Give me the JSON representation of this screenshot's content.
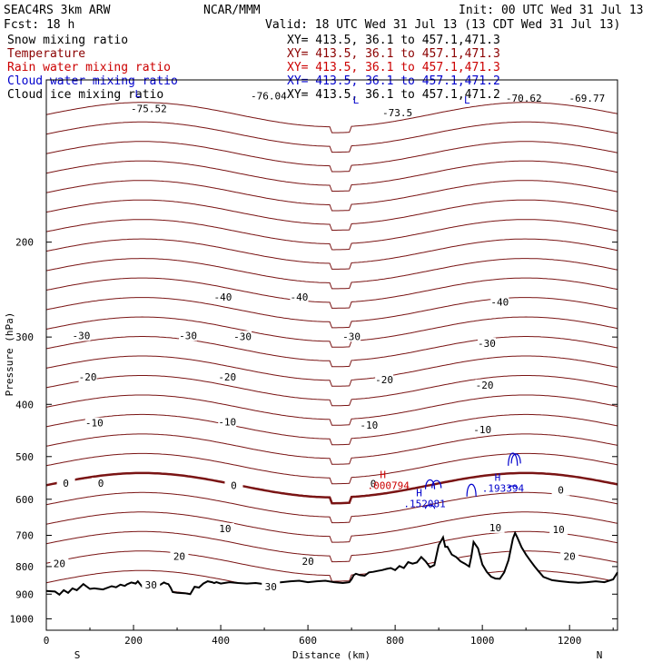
{
  "header": {
    "model": "SEAC4RS  3km ARW",
    "org": "NCAR/MMM",
    "init": "Init: 00 UTC Wed 31 Jul 13",
    "fcst": "Fcst:   18 h",
    "valid": "Valid: 18 UTC Wed 31 Jul 13 (13 CDT Wed 31 Jul 13)"
  },
  "fields": [
    {
      "name": "Snow mixing ratio",
      "xy": "XY= 413.5, 36.1 to 457.1,471.3",
      "color": "#000000"
    },
    {
      "name": "Temperature",
      "xy": "XY= 413.5, 36.1 to 457.1,471.3",
      "color": "#8b0000"
    },
    {
      "name": "Rain water mixing ratio",
      "xy": "XY= 413.5, 36.1 to 457.1,471.3",
      "color": "#cc0000"
    },
    {
      "name": "Cloud water mixing ratio",
      "xy": "XY= 413.5, 36.1 to 457.1,471.2",
      "color": "#0000cc"
    },
    {
      "name": "Cloud ice mixing ratio",
      "xy": "XY= 413.5, 36.1 to 457.1,471.2",
      "color": "#000000"
    }
  ],
  "colors": {
    "temperature": "#7a1414",
    "rain": "#cc0000",
    "cloud_water": "#0000cc",
    "terrain": "#000000"
  },
  "chart_data": {
    "type": "line",
    "xlabel": "Distance (km)",
    "ylabel": "Pressure (hPa)",
    "xlim": [
      0,
      1310
    ],
    "ylim": [
      1050,
      100
    ],
    "y_scale": "log",
    "x_ticks": [
      "0",
      "200",
      "400",
      "600",
      "800",
      "1000",
      "1200"
    ],
    "y_ticks": [
      "200",
      "300",
      "400",
      "500",
      "600",
      "700",
      "800",
      "900",
      "1000"
    ],
    "x_ends": {
      "left": "S",
      "right": "N"
    },
    "isotherm_levels": [
      -70,
      -60,
      -50,
      -40,
      -30,
      -20,
      -10,
      0,
      10,
      20,
      30
    ],
    "isotherm_labels": [
      {
        "text": "-40",
        "x": 405,
        "p": 253
      },
      {
        "text": "-40",
        "x": 580,
        "p": 253
      },
      {
        "text": "-40",
        "x": 1040,
        "p": 258
      },
      {
        "text": "-30",
        "x": 80,
        "p": 298
      },
      {
        "text": "-30",
        "x": 325,
        "p": 298
      },
      {
        "text": "-30",
        "x": 450,
        "p": 299
      },
      {
        "text": "-30",
        "x": 700,
        "p": 299
      },
      {
        "text": "-30",
        "x": 1010,
        "p": 308
      },
      {
        "text": "-20",
        "x": 95,
        "p": 356
      },
      {
        "text": "-20",
        "x": 415,
        "p": 356
      },
      {
        "text": "-20",
        "x": 775,
        "p": 360
      },
      {
        "text": "-20",
        "x": 1005,
        "p": 368
      },
      {
        "text": "-10",
        "x": 110,
        "p": 433
      },
      {
        "text": "-10",
        "x": 415,
        "p": 431
      },
      {
        "text": "-10",
        "x": 740,
        "p": 437
      },
      {
        "text": "-10",
        "x": 1000,
        "p": 445
      },
      {
        "text": "0",
        "x": 45,
        "p": 560
      },
      {
        "text": "0",
        "x": 125,
        "p": 560
      },
      {
        "text": "0",
        "x": 430,
        "p": 566
      },
      {
        "text": "0",
        "x": 750,
        "p": 561
      },
      {
        "text": "0",
        "x": 1180,
        "p": 577
      },
      {
        "text": "10",
        "x": 410,
        "p": 680
      },
      {
        "text": "10",
        "x": 1030,
        "p": 677
      },
      {
        "text": "10",
        "x": 1175,
        "p": 682
      },
      {
        "text": "20",
        "x": 30,
        "p": 790
      },
      {
        "text": "20",
        "x": 305,
        "p": 766
      },
      {
        "text": "20",
        "x": 600,
        "p": 782
      },
      {
        "text": "20",
        "x": 1200,
        "p": 766
      },
      {
        "text": "30",
        "x": 240,
        "p": 864
      },
      {
        "text": "30",
        "x": 515,
        "p": 871
      }
    ],
    "top_labels": [
      {
        "text": "-76.04",
        "x": 510,
        "p": 107
      },
      {
        "text": "-73.5",
        "x": 805,
        "p": 115
      },
      {
        "text": "-70.62",
        "x": 1095,
        "p": 108
      },
      {
        "text": "-69.77",
        "x": 1240,
        "p": 108
      },
      {
        "text": "-75.52",
        "x": 235,
        "p": 113
      }
    ],
    "top_marks": [
      {
        "text": "L",
        "x": 210,
        "p": 106
      },
      {
        "text": "L",
        "x": 710,
        "p": 109
      },
      {
        "text": "L",
        "x": 965,
        "p": 109
      }
    ],
    "extrema": [
      {
        "field": "rain",
        "letter": "H",
        "value": ".000794",
        "x": 772,
        "p": 548
      },
      {
        "field": "cloud_water",
        "letter": "H",
        "value": ".152081",
        "x": 855,
        "p": 592
      },
      {
        "field": "cloud_water",
        "letter": "H",
        "value": ".193394",
        "x": 1035,
        "p": 555
      }
    ],
    "cloud_contours": [
      {
        "x": 880,
        "p_top": 545,
        "p_bottom": 575
      },
      {
        "x": 895,
        "p_top": 548,
        "p_bottom": 572
      },
      {
        "x": 975,
        "p_top": 553,
        "p_bottom": 593
      },
      {
        "x": 1070,
        "p_top": 484,
        "p_bottom": 520
      },
      {
        "x": 1077,
        "p_top": 488,
        "p_bottom": 515
      },
      {
        "x": 880,
        "p_top": 612,
        "p_bottom": 625
      },
      {
        "x": 1070,
        "p_top": 565,
        "p_bottom": 572
      }
    ],
    "terrain": {
      "x": [
        0,
        20,
        30,
        40,
        50,
        60,
        70,
        85,
        100,
        110,
        130,
        150,
        160,
        170,
        180,
        185,
        195,
        200,
        205,
        210,
        220,
        230,
        240,
        250,
        260,
        270,
        275,
        280,
        285,
        290,
        300,
        320,
        330,
        340,
        350,
        360,
        370,
        380,
        385,
        390,
        400,
        420,
        440,
        460,
        480,
        500,
        520,
        540,
        560,
        580,
        600,
        620,
        640,
        660,
        680,
        695,
        700,
        705,
        710,
        720,
        730,
        740,
        750,
        760,
        770,
        780,
        790,
        800,
        810,
        820,
        830,
        840,
        850,
        860,
        870,
        880,
        890,
        900,
        910,
        915,
        920,
        930,
        940,
        950,
        960,
        970,
        975,
        980,
        990,
        1000,
        1010,
        1020,
        1030,
        1040,
        1050,
        1060,
        1070,
        1075,
        1080,
        1090,
        1100,
        1110,
        1120,
        1130,
        1140,
        1160,
        1180,
        1200,
        1220,
        1240,
        1260,
        1280,
        1300,
        1310
      ],
      "p": [
        888,
        890,
        902,
        885,
        895,
        878,
        885,
        862,
        880,
        878,
        882,
        870,
        874,
        864,
        869,
        863,
        856,
        858,
        860,
        852,
        872,
        868,
        860,
        862,
        866,
        856,
        860,
        862,
        875,
        892,
        895,
        897,
        900,
        872,
        875,
        860,
        852,
        855,
        858,
        855,
        860,
        855,
        858,
        860,
        858,
        862,
        858,
        855,
        852,
        850,
        855,
        852,
        850,
        855,
        858,
        855,
        845,
        830,
        825,
        830,
        832,
        820,
        818,
        815,
        812,
        808,
        805,
        812,
        798,
        805,
        785,
        790,
        786,
        768,
        782,
        802,
        795,
        730,
        706,
        735,
        735,
        760,
        768,
        782,
        790,
        800,
        765,
        720,
        740,
        793,
        818,
        835,
        842,
        843,
        820,
        778,
        710,
        693,
        706,
        737,
        760,
        780,
        800,
        818,
        836,
        848,
        852,
        855,
        857,
        855,
        852,
        855,
        845,
        820
      ]
    }
  }
}
